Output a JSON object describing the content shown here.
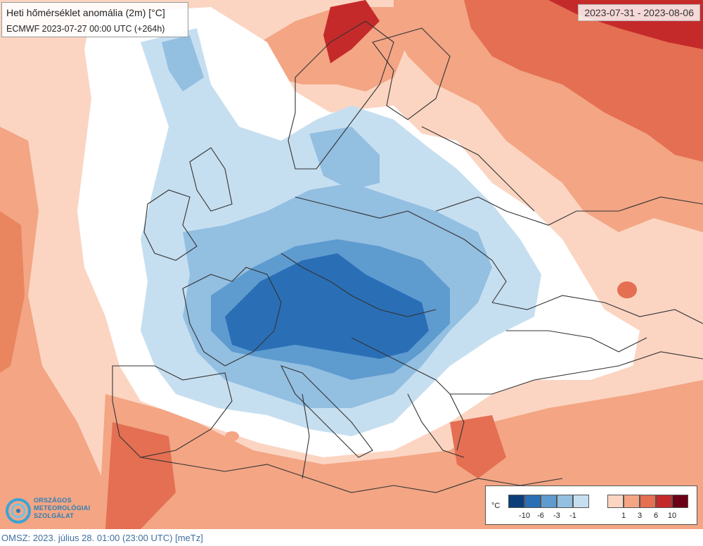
{
  "header": {
    "title": "Heti hőmérséklet anomália (2m) [°C]",
    "run": "ECMWF 2023-07-27 00:00 UTC (+264h)",
    "period": "2023-07-31 - 2023-08-06"
  },
  "legend": {
    "unit": "°C",
    "cold_colors": [
      "#0b3d78",
      "#2a6fb6",
      "#5e9bcf",
      "#93bfe1",
      "#c6dff0"
    ],
    "warm_colors": [
      "#fbd5c2",
      "#f3a584",
      "#e46f52",
      "#c52a2b",
      "#6b0016"
    ],
    "cold_ticks": [
      "-10",
      "-6",
      "-3",
      "-1"
    ],
    "warm_ticks": [
      "1",
      "3",
      "6",
      "10"
    ]
  },
  "logo": {
    "line1": "ORSZÁGOS",
    "line2": "METEOROLÓGIAI",
    "line3": "SZOLGÁLAT",
    "icon": "omsz-swirl-icon"
  },
  "footer": {
    "text": "OMSZ: 2023. július 28. 01:00 (23:00 UTC) [meTz]"
  },
  "map_colors": {
    "background_ocean_warm": "#fbd5c2",
    "neutral": "#ffffff"
  }
}
